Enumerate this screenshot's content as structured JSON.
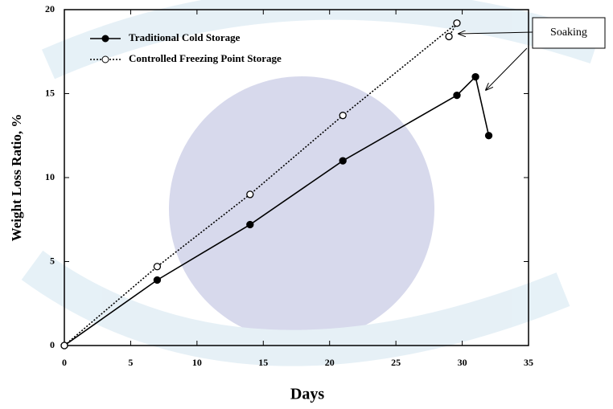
{
  "chart_data": {
    "type": "line",
    "x_label": "Days",
    "y_label": "Weight Loss Ratio, %",
    "series": [
      {
        "name": "Traditional Cold Storage",
        "color": "#000000",
        "marker": "filled",
        "dash": "solid",
        "x": [
          0,
          7,
          14,
          21,
          29.6,
          31,
          32
        ],
        "values": [
          0,
          3.9,
          7.2,
          11,
          14.9,
          16,
          12.5
        ]
      },
      {
        "name": "Controlled Freezing Point Storage",
        "color": "#000000",
        "marker": "open",
        "dash": "dotted",
        "x": [
          0,
          7,
          14,
          21,
          29.6,
          29
        ],
        "values": [
          0,
          4.7,
          9,
          13.7,
          19.2,
          18.4
        ]
      }
    ],
    "annotation": "Soaking",
    "xlim": [
      0,
      35
    ],
    "xticks": [
      0,
      5,
      10,
      15,
      20,
      25,
      30,
      35
    ],
    "ylim": [
      0,
      20
    ],
    "yticks": [
      0,
      5,
      10,
      15,
      20
    ],
    "legend": "top-left",
    "grid": false
  }
}
